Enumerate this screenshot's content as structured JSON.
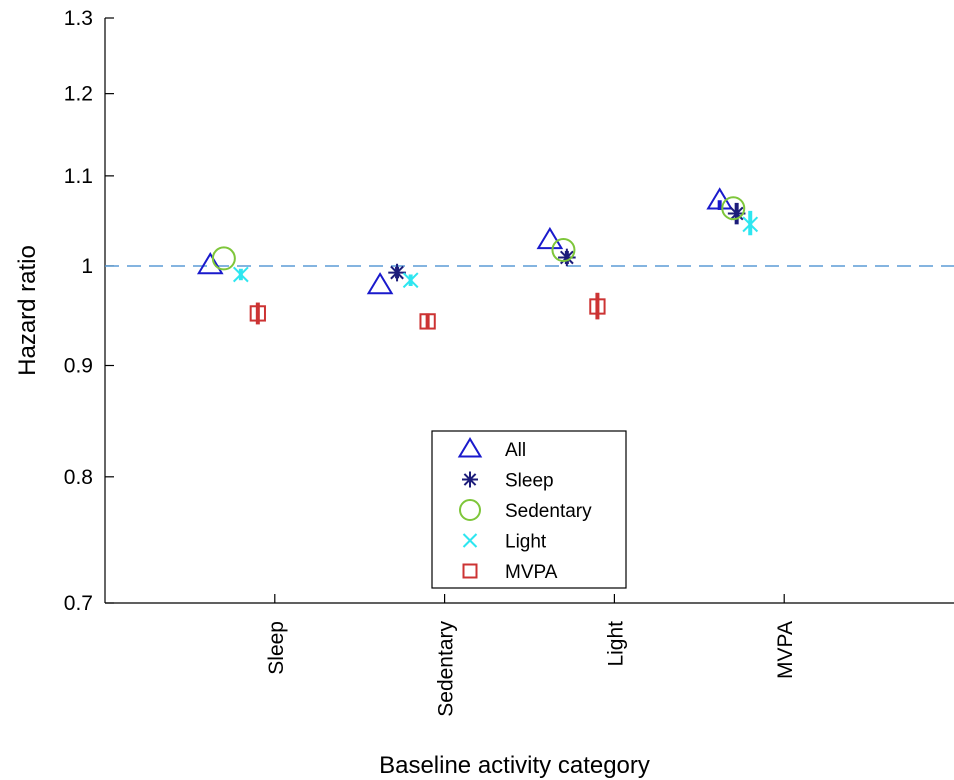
{
  "chart_data": {
    "type": "scatter",
    "title": "",
    "xlabel": "Baseline activity category",
    "ylabel": "Hazard ratio",
    "yscale": "log",
    "ylim": [
      0.7,
      1.3
    ],
    "yticks": [
      "0.7",
      "0.8",
      "0.9",
      "1",
      "1.1",
      "1.2",
      "1.3"
    ],
    "categories": [
      "Sleep",
      "Sedentary",
      "Light",
      "MVPA"
    ],
    "reference_line": {
      "y": 1.0,
      "style": "dashed",
      "color": "#5b9bd5"
    },
    "grid": false,
    "legend": {
      "position": "bottom-center"
    },
    "series": [
      {
        "name": "All",
        "marker": "triangle",
        "color": "#1a1acc",
        "offset": -0.38,
        "values": [
          1.001,
          0.98,
          1.028,
          1.072
        ],
        "ci": [
          null,
          null,
          null,
          [
            1.061,
            1.072
          ]
        ]
      },
      {
        "name": "Sleep",
        "marker": "asterisk",
        "color": "#1c1c7a",
        "offset": -0.28,
        "values": [
          null,
          0.993,
          1.009,
          1.057
        ],
        "ci": [
          null,
          [
            0.987,
            0.999
          ],
          [
            1.002,
            1.016
          ],
          [
            1.045,
            1.069
          ]
        ]
      },
      {
        "name": "Sedentary",
        "marker": "circle",
        "color": "#7ec63a",
        "offset": -0.3,
        "values": [
          1.008,
          null,
          1.017,
          1.063
        ],
        "ci": [
          null,
          null,
          null,
          null
        ]
      },
      {
        "name": "Light",
        "marker": "x",
        "color": "#2ee6f0",
        "offset": -0.2,
        "values": [
          0.991,
          0.985,
          null,
          1.045
        ],
        "ci": [
          [
            0.985,
            0.997
          ],
          [
            0.979,
            0.991
          ],
          null,
          [
            1.033,
            1.06
          ]
        ]
      },
      {
        "name": "MVPA",
        "marker": "square",
        "color": "#cc3333",
        "offset": -0.1,
        "values": [
          0.951,
          0.943,
          0.958,
          null
        ],
        "ci": [
          [
            0.94,
            0.962
          ],
          [
            0.935,
            0.951
          ],
          [
            0.945,
            0.972
          ],
          null
        ]
      }
    ]
  }
}
